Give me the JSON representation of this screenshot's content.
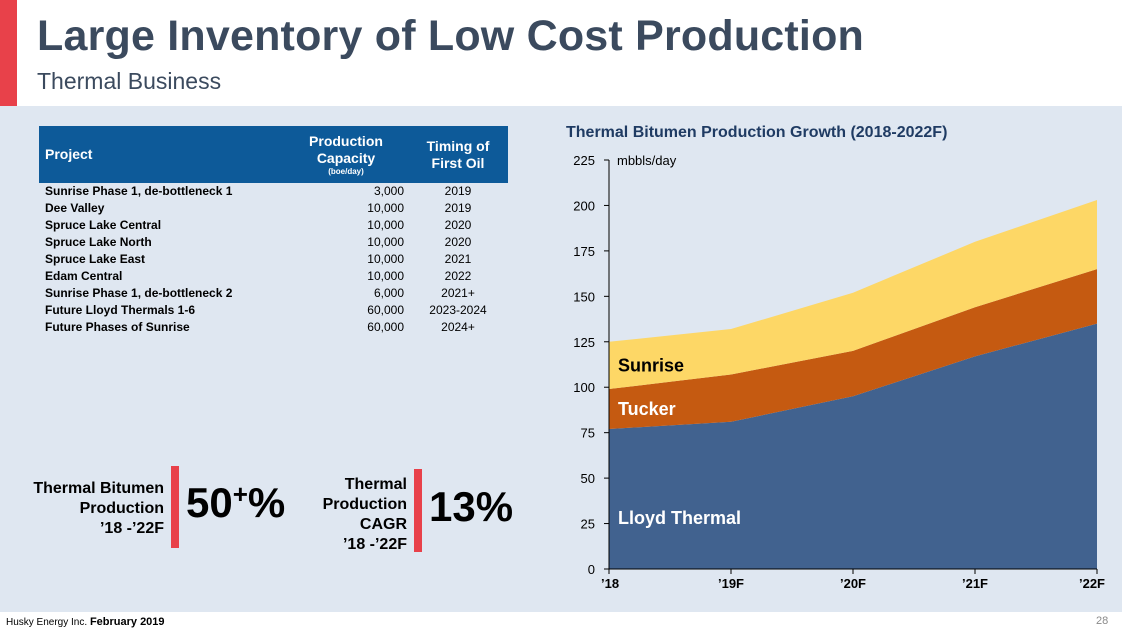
{
  "header": {
    "title": "Large Inventory of Low Cost Production",
    "subtitle": "Thermal Business"
  },
  "projects_table": {
    "headers": {
      "project": "Project",
      "capacity": "Production Capacity",
      "capacity_unit": "(boe/day)",
      "timing": "Timing of First Oil"
    },
    "rows": [
      {
        "project": "Sunrise Phase 1, de-bottleneck 1",
        "capacity": "3,000",
        "timing": "2019"
      },
      {
        "project": "Dee Valley",
        "capacity": "10,000",
        "timing": "2019"
      },
      {
        "project": "Spruce Lake Central",
        "capacity": "10,000",
        "timing": "2020"
      },
      {
        "project": "Spruce Lake North",
        "capacity": "10,000",
        "timing": "2020"
      },
      {
        "project": "Spruce Lake East",
        "capacity": "10,000",
        "timing": "2021"
      },
      {
        "project": "Edam Central",
        "capacity": "10,000",
        "timing": "2022"
      },
      {
        "project": "Sunrise Phase 1, de-bottleneck 2",
        "capacity": "6,000",
        "timing": "2021+"
      },
      {
        "project": "Future Lloyd Thermals 1-6",
        "capacity": "60,000",
        "timing": "2023-2024"
      },
      {
        "project": "Future Phases of Sunrise",
        "capacity": "60,000",
        "timing": "2024+"
      }
    ]
  },
  "stats": [
    {
      "label_lines": [
        "Thermal Bitumen",
        "Production",
        "’18 -’22F"
      ],
      "value": "50",
      "value_sup": "+",
      "value_suffix": "%"
    },
    {
      "label_lines": [
        "Thermal",
        "Production",
        "CAGR",
        "’18 -’22F"
      ],
      "value": "13%"
    }
  ],
  "chart_data": {
    "type": "area",
    "stacked": true,
    "title": "Thermal Bitumen Production Growth (2018-2022F)",
    "ylabel": "mbbls/day",
    "xlabel": "",
    "categories": [
      "'18",
      "'19F",
      "'20F",
      "'21F",
      "'22F"
    ],
    "ylim": [
      0,
      225
    ],
    "yticks": [
      0,
      25,
      50,
      75,
      100,
      125,
      150,
      175,
      200,
      225
    ],
    "grid": false,
    "legend": "inline labels",
    "series": [
      {
        "name": "Lloyd Thermal",
        "color": "#41628f",
        "label_color": "#ffffff",
        "values": [
          77,
          81,
          95,
          117,
          135
        ]
      },
      {
        "name": "Tucker",
        "color": "#c55a11",
        "label_color": "#ffffff",
        "values": [
          22,
          26,
          25,
          27,
          30
        ]
      },
      {
        "name": "Sunrise",
        "color": "#fdd766",
        "label_color": "#000000",
        "values": [
          26,
          25,
          32,
          36,
          38
        ]
      }
    ]
  },
  "footer": {
    "company": "Husky Energy Inc.",
    "date": "February 2019",
    "page": "28"
  }
}
